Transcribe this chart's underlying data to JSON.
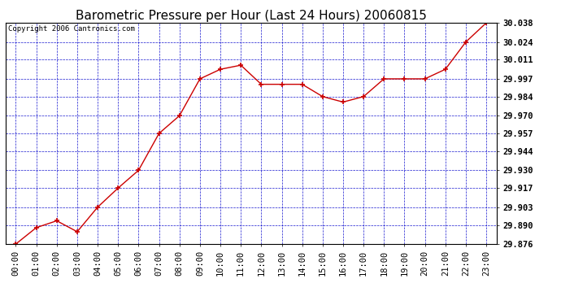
{
  "title": "Barometric Pressure per Hour (Last 24 Hours) 20060815",
  "copyright": "Copyright 2006 Cantronics.com",
  "x_labels": [
    "00:00",
    "01:00",
    "02:00",
    "03:00",
    "04:00",
    "05:00",
    "06:00",
    "07:00",
    "08:00",
    "09:00",
    "10:00",
    "11:00",
    "12:00",
    "13:00",
    "14:00",
    "15:00",
    "16:00",
    "17:00",
    "18:00",
    "19:00",
    "20:00",
    "21:00",
    "22:00",
    "23:00"
  ],
  "y_values": [
    29.876,
    29.888,
    29.893,
    29.885,
    29.903,
    29.917,
    29.93,
    29.957,
    29.97,
    29.997,
    30.004,
    30.007,
    29.993,
    29.993,
    29.993,
    29.984,
    29.98,
    29.984,
    29.997,
    29.997,
    29.997,
    30.004,
    30.024,
    30.038
  ],
  "y_min": 29.876,
  "y_max": 30.038,
  "y_ticks": [
    29.876,
    29.89,
    29.903,
    29.917,
    29.93,
    29.944,
    29.957,
    29.97,
    29.984,
    29.997,
    30.011,
    30.024,
    30.038
  ],
  "line_color": "#cc0000",
  "marker_color": "#cc0000",
  "grid_color": "#0000cc",
  "background_color": "#ffffff",
  "plot_bg_color": "#ffffff",
  "title_fontsize": 11,
  "tick_fontsize": 7.5,
  "copyright_fontsize": 6.5
}
